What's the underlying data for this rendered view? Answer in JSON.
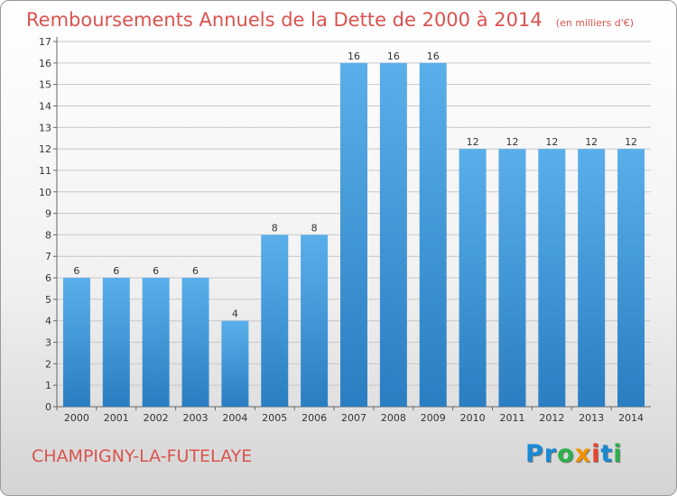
{
  "title": "Remboursements Annuels de la Dette de 2000 à 2014",
  "unit": "(en milliers d'€)",
  "commune": "CHAMPIGNY-LA-FUTELAYE",
  "logo": {
    "text": "Proxiti",
    "letters": [
      {
        "ch": "P",
        "color": "#1a8ad4"
      },
      {
        "ch": "r",
        "color": "#1a8ad4"
      },
      {
        "ch": "o",
        "color": "#2bb24c"
      },
      {
        "ch": "x",
        "color": "#f39200"
      },
      {
        "ch": "i",
        "color": "#e8452c"
      },
      {
        "ch": "t",
        "color": "#1a8ad4"
      },
      {
        "ch": "i",
        "color": "#2bb24c"
      }
    ]
  },
  "colors": {
    "bar_light": "#5aafea",
    "bar_dark": "#2a7ec1",
    "title": "#d9534f"
  },
  "chart_data": {
    "type": "bar",
    "title": "Remboursements Annuels de la Dette de 2000 à 2014",
    "xlabel": "",
    "ylabel": "",
    "ylim": [
      0,
      17
    ],
    "yticks": [
      0,
      1,
      2,
      3,
      4,
      5,
      6,
      7,
      8,
      9,
      10,
      11,
      12,
      13,
      14,
      15,
      16,
      17
    ],
    "categories": [
      "2000",
      "2001",
      "2002",
      "2003",
      "2004",
      "2005",
      "2006",
      "2007",
      "2008",
      "2009",
      "2010",
      "2011",
      "2012",
      "2013",
      "2014"
    ],
    "values": [
      6,
      6,
      6,
      6,
      4,
      8,
      8,
      16,
      16,
      16,
      12,
      12,
      12,
      12,
      12
    ],
    "value_labels": [
      "6",
      "6",
      "6",
      "6",
      "4",
      "8",
      "8",
      "16",
      "16",
      "16",
      "12",
      "12",
      "12",
      "12",
      "12"
    ],
    "grid": true
  }
}
